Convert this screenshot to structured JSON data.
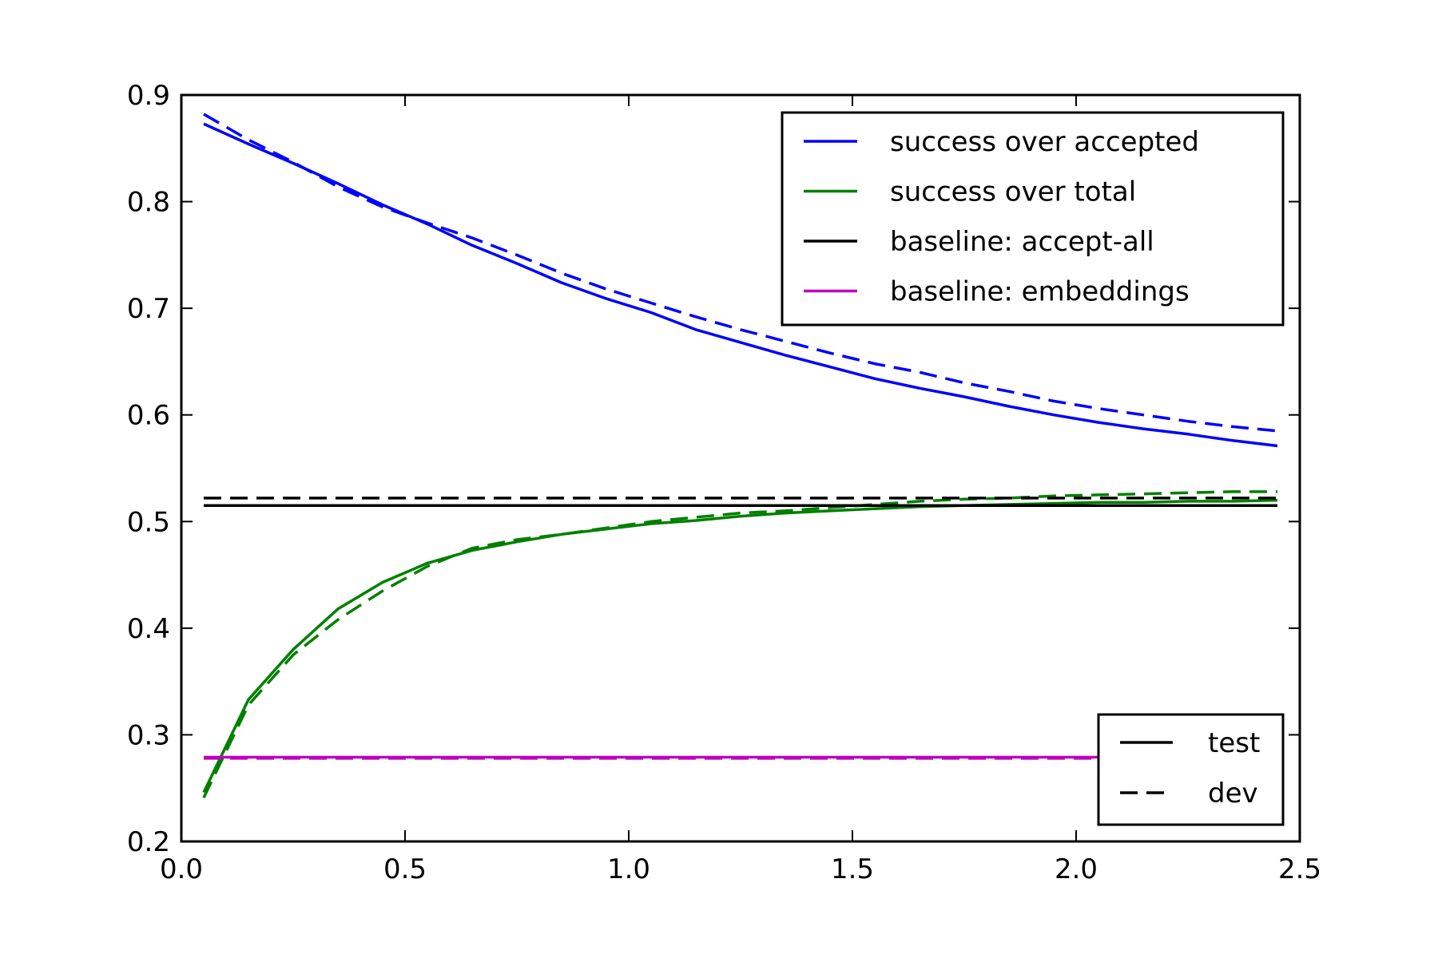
{
  "chart_data": {
    "type": "line",
    "title": "",
    "xlabel": "",
    "ylabel": "",
    "xlim": [
      0.0,
      2.5
    ],
    "ylim": [
      0.2,
      0.9
    ],
    "xticks": [
      "0.0",
      "0.5",
      "1.0",
      "1.5",
      "2.0",
      "2.5"
    ],
    "yticks": [
      "0.2",
      "0.3",
      "0.4",
      "0.5",
      "0.6",
      "0.7",
      "0.8",
      "0.9"
    ],
    "grid": false,
    "x": [
      0.05,
      0.15,
      0.25,
      0.35,
      0.45,
      0.55,
      0.65,
      0.75,
      0.85,
      0.95,
      1.05,
      1.15,
      1.25,
      1.35,
      1.45,
      1.55,
      1.65,
      1.75,
      1.85,
      1.95,
      2.05,
      2.15,
      2.25,
      2.35,
      2.45
    ],
    "series": [
      {
        "name": "success over accepted",
        "split": "test",
        "color": "#0000ff",
        "dash": "solid",
        "values": [
          0.873,
          0.854,
          0.836,
          0.817,
          0.797,
          0.779,
          0.759,
          0.742,
          0.724,
          0.709,
          0.696,
          0.68,
          0.668,
          0.656,
          0.645,
          0.634,
          0.625,
          0.617,
          0.608,
          0.6,
          0.593,
          0.587,
          0.582,
          0.576,
          0.571
        ]
      },
      {
        "name": "success over accepted",
        "split": "dev",
        "color": "#0000ff",
        "dash": "dashed",
        "values": [
          0.882,
          0.858,
          0.837,
          0.814,
          0.795,
          0.78,
          0.766,
          0.75,
          0.733,
          0.718,
          0.705,
          0.692,
          0.68,
          0.669,
          0.658,
          0.648,
          0.64,
          0.63,
          0.622,
          0.613,
          0.606,
          0.6,
          0.594,
          0.589,
          0.585
        ]
      },
      {
        "name": "success over total",
        "split": "test",
        "color": "#008000",
        "dash": "solid",
        "values": [
          0.246,
          0.333,
          0.38,
          0.418,
          0.443,
          0.461,
          0.473,
          0.481,
          0.488,
          0.493,
          0.498,
          0.501,
          0.505,
          0.508,
          0.51,
          0.512,
          0.514,
          0.515,
          0.516,
          0.517,
          0.518,
          0.518,
          0.519,
          0.519,
          0.52
        ]
      },
      {
        "name": "success over total",
        "split": "dev",
        "color": "#008000",
        "dash": "dashed",
        "values": [
          0.241,
          0.328,
          0.375,
          0.408,
          0.435,
          0.458,
          0.475,
          0.483,
          0.488,
          0.494,
          0.5,
          0.504,
          0.508,
          0.51,
          0.513,
          0.516,
          0.519,
          0.521,
          0.522,
          0.524,
          0.525,
          0.526,
          0.527,
          0.528,
          0.528
        ]
      },
      {
        "name": "baseline: accept-all",
        "split": "test",
        "color": "#000000",
        "dash": "solid",
        "constant": 0.515
      },
      {
        "name": "baseline: accept-all",
        "split": "dev",
        "color": "#000000",
        "dash": "dashed",
        "constant": 0.522
      },
      {
        "name": "baseline: embeddings",
        "split": "test",
        "color": "#bf00bf",
        "dash": "solid",
        "constant": 0.279
      },
      {
        "name": "baseline: embeddings",
        "split": "dev",
        "color": "#bf00bf",
        "dash": "dashed",
        "constant": 0.278
      }
    ],
    "legend_series": {
      "placement": "top-right",
      "entries": [
        {
          "label": "success over accepted",
          "color": "#0000ff"
        },
        {
          "label": "success over total",
          "color": "#008000"
        },
        {
          "label": "baseline: accept-all",
          "color": "#000000"
        },
        {
          "label": "baseline: embeddings",
          "color": "#bf00bf"
        }
      ]
    },
    "legend_style": {
      "placement": "bottom-right",
      "entries": [
        {
          "label": "test",
          "dash": "solid"
        },
        {
          "label": "dev",
          "dash": "dashed"
        }
      ]
    }
  }
}
